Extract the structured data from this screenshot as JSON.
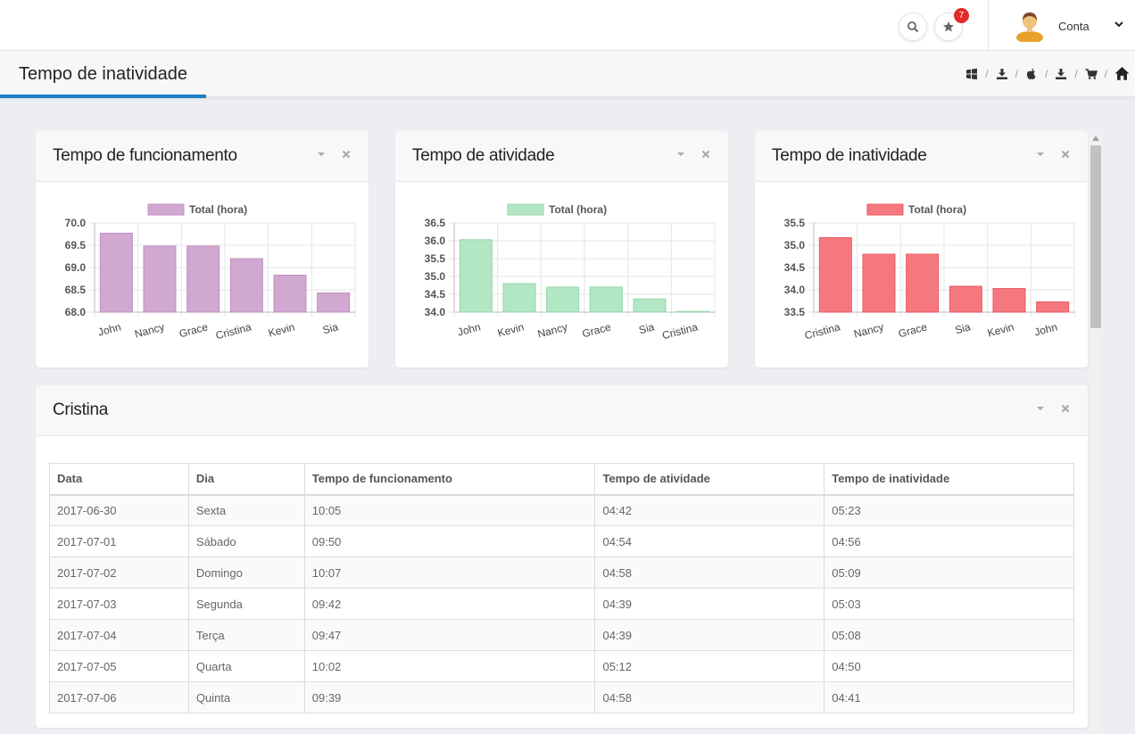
{
  "topbar": {
    "search_icon": "search-icon",
    "favorites_icon": "star-icon",
    "favorites_badge": "7",
    "account_label": "Conta",
    "badge_color": "#e02b27"
  },
  "page": {
    "title": "Tempo de inatividade",
    "accent": "#1f7fc6",
    "breadcrumb_icons": [
      "windows-icon",
      "download-icon",
      "apple-icon",
      "download-icon",
      "cart-icon",
      "home-icon"
    ]
  },
  "panels": {
    "uptime": {
      "title": "Tempo de funcionamento"
    },
    "activity": {
      "title": "Tempo de atividade"
    },
    "idle": {
      "title": "Tempo de inatividade"
    },
    "detail": {
      "title": "Cristina"
    }
  },
  "chart_data": [
    {
      "type": "bar",
      "legend": "Total (hora)",
      "color": "#d0a8d0",
      "stroke": "#c090c0",
      "categories": [
        "John",
        "Nancy",
        "Grace",
        "Cristina",
        "Kevin",
        "Sia"
      ],
      "values": [
        69.77,
        69.48,
        69.48,
        69.2,
        68.83,
        68.43
      ],
      "ylim": [
        68.0,
        70.0
      ],
      "ticks": [
        "70.0",
        "69.5",
        "69.0",
        "68.5",
        "68.0"
      ],
      "tick_values": [
        70.0,
        69.5,
        69.0,
        68.5,
        68.0
      ]
    },
    {
      "type": "bar",
      "legend": "Total (hora)",
      "color": "#b3e6c4",
      "stroke": "#93d4a8",
      "categories": [
        "John",
        "Kevin",
        "Nancy",
        "Grace",
        "Sia",
        "Cristina"
      ],
      "values": [
        36.03,
        34.8,
        34.7,
        34.7,
        34.37,
        34.0
      ],
      "ylim": [
        34.0,
        36.5
      ],
      "ticks": [
        "36.5",
        "36.0",
        "35.5",
        "35.0",
        "34.5",
        "34.0"
      ],
      "tick_values": [
        36.5,
        36.0,
        35.5,
        35.0,
        34.5,
        34.0
      ]
    },
    {
      "type": "bar",
      "legend": "Total (hora)",
      "color": "#f6787f",
      "stroke": "#ec5a63",
      "categories": [
        "Cristina",
        "Nancy",
        "Grace",
        "Sia",
        "Kevin",
        "John"
      ],
      "values": [
        35.17,
        34.8,
        34.8,
        34.08,
        34.03,
        33.73
      ],
      "ylim": [
        33.5,
        35.5
      ],
      "ticks": [
        "35.5",
        "35.0",
        "34.5",
        "34.0",
        "33.5"
      ],
      "tick_values": [
        35.5,
        35.0,
        34.5,
        34.0,
        33.5
      ]
    }
  ],
  "table": {
    "headers": [
      "Data",
      "Dia",
      "Tempo de funcionamento",
      "Tempo de atividade",
      "Tempo de inatividade"
    ],
    "rows": [
      [
        "2017-06-30",
        "Sexta",
        "10:05",
        "04:42",
        "05:23"
      ],
      [
        "2017-07-01",
        "Sábado",
        "09:50",
        "04:54",
        "04:56"
      ],
      [
        "2017-07-02",
        "Domingo",
        "10:07",
        "04:58",
        "05:09"
      ],
      [
        "2017-07-03",
        "Segunda",
        "09:42",
        "04:39",
        "05:03"
      ],
      [
        "2017-07-04",
        "Terça",
        "09:47",
        "04:39",
        "05:08"
      ],
      [
        "2017-07-05",
        "Quarta",
        "10:02",
        "05:12",
        "04:50"
      ],
      [
        "2017-07-06",
        "Quinta",
        "09:39",
        "04:58",
        "04:41"
      ]
    ]
  }
}
